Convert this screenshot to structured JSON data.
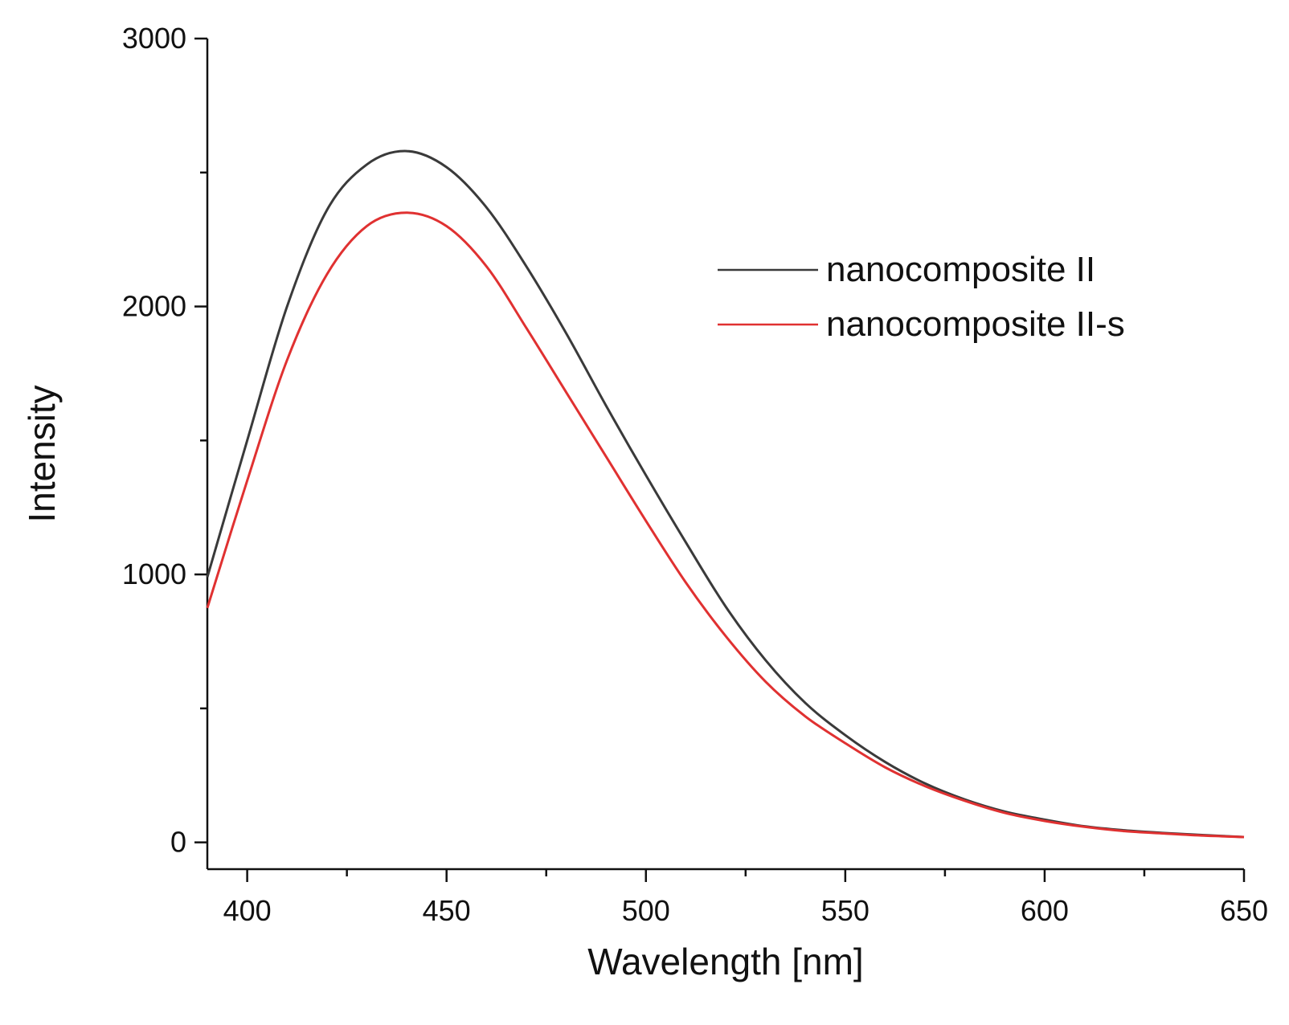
{
  "chart_data": {
    "type": "line",
    "title": "",
    "xlabel": "Wavelength [nm]",
    "ylabel": "Intensity",
    "xlim": [
      390,
      650
    ],
    "ylim": [
      -100,
      3000
    ],
    "x_ticks": [
      400,
      450,
      500,
      550,
      600,
      650
    ],
    "x_minor_ticks": [
      425,
      475,
      525,
      575,
      625
    ],
    "y_ticks": [
      0,
      1000,
      2000,
      3000
    ],
    "y_minor_ticks": [
      500,
      1500,
      2500
    ],
    "grid": false,
    "legend_position": "upper-right",
    "series": [
      {
        "name": "nanocomposite II",
        "color": "#3a3a3a",
        "x": [
          390,
          400,
          410,
          420,
          430,
          440,
          450,
          460,
          470,
          480,
          490,
          500,
          510,
          520,
          530,
          540,
          550,
          560,
          570,
          580,
          590,
          600,
          610,
          620,
          630,
          640,
          650
        ],
        "y": [
          990,
          1500,
          2000,
          2360,
          2530,
          2580,
          2520,
          2370,
          2150,
          1900,
          1630,
          1370,
          1120,
          880,
          680,
          520,
          400,
          300,
          220,
          160,
          115,
          85,
          60,
          45,
          35,
          27,
          20
        ]
      },
      {
        "name": "nanocomposite II-s",
        "color": "#e03131",
        "x": [
          390,
          400,
          410,
          420,
          430,
          440,
          450,
          460,
          470,
          480,
          490,
          500,
          510,
          520,
          530,
          540,
          550,
          560,
          570,
          580,
          590,
          600,
          610,
          620,
          630,
          640,
          650
        ],
        "y": [
          875,
          1350,
          1800,
          2120,
          2300,
          2350,
          2300,
          2150,
          1920,
          1680,
          1440,
          1200,
          970,
          770,
          600,
          470,
          370,
          280,
          210,
          155,
          110,
          80,
          58,
          42,
          33,
          25,
          20
        ]
      }
    ]
  }
}
